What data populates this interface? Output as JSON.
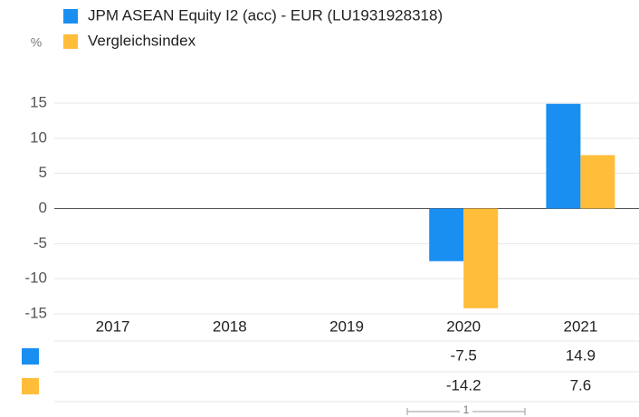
{
  "chart_data": {
    "type": "bar",
    "y_axis_label": "%",
    "categories": [
      "2017",
      "2018",
      "2019",
      "2020",
      "2021"
    ],
    "series": [
      {
        "name": "JPM ASEAN Equity I2 (acc) - EUR (LU1931928318)",
        "color": "#1a8ff2",
        "values": [
          null,
          null,
          null,
          -7.5,
          14.9
        ]
      },
      {
        "name": "Vergleichsindex",
        "color": "#ffbd3a",
        "values": [
          null,
          null,
          null,
          -14.2,
          7.6
        ]
      }
    ],
    "ylim": [
      -15,
      15
    ],
    "yticks": [
      -15,
      -10,
      -5,
      0,
      5,
      10,
      15
    ],
    "grid": true,
    "slider_label": "1"
  }
}
